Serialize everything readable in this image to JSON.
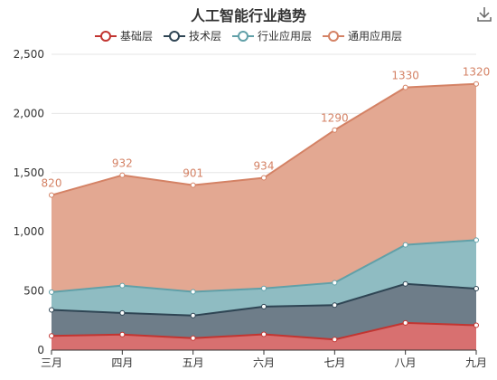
{
  "chart_data": {
    "type": "area",
    "stacked": true,
    "title": "人工智能行业趋势",
    "categories": [
      "三月",
      "四月",
      "五月",
      "六月",
      "七月",
      "八月",
      "九月"
    ],
    "ylim": [
      0,
      2500
    ],
    "yticks": [
      0,
      500,
      1000,
      1500,
      2000,
      2500
    ],
    "ytick_labels": [
      "0",
      "500",
      "1,000",
      "1,500",
      "2,000",
      "2,500"
    ],
    "grid": true,
    "legend_position": "top-center",
    "series": [
      {
        "name": "基础层",
        "color": "#c23531",
        "fill": "#d87070",
        "values": [
          120,
          132,
          101,
          134,
          90,
          230,
          210
        ]
      },
      {
        "name": "技术层",
        "color": "#2f4554",
        "fill": "#6e7d89",
        "values": [
          220,
          182,
          191,
          234,
          290,
          330,
          310
        ]
      },
      {
        "name": "行业应用层",
        "color": "#61a0a8",
        "fill": "#8fbcc2",
        "values": [
          150,
          232,
          201,
          154,
          190,
          330,
          410
        ]
      },
      {
        "name": "通用应用层",
        "color": "#d48265",
        "fill": "#e3a892",
        "values": [
          820,
          932,
          901,
          934,
          1290,
          1330,
          1320
        ]
      }
    ],
    "data_labels": [
      {
        "series": "通用应用层",
        "values": [
          "820",
          "932",
          "901",
          "934",
          "1290",
          "1330",
          "1320"
        ]
      }
    ]
  },
  "toolbar": {
    "download_icon": "download-icon"
  }
}
